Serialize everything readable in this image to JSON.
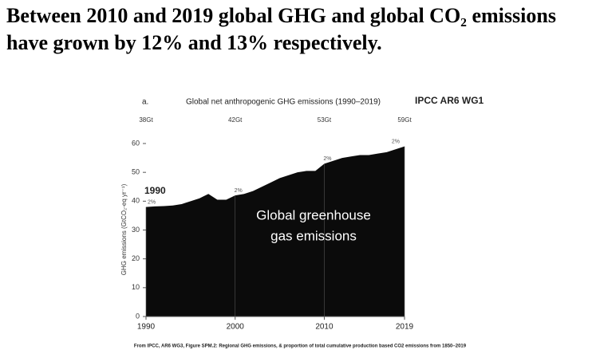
{
  "title_lines": [
    "Between 2010 and 2019 global GHG and global CO₂ emissions",
    "have grown by 12% and 13% respectively."
  ],
  "chart_data": {
    "type": "area",
    "panel": "a.",
    "title": "Global net anthropogenic GHG emissions (1990–2019)",
    "source_tag": "IPCC AR6 WG1",
    "y_label": "GHG emissions (GtCO₂-eq yr⁻¹)",
    "x": [
      1990,
      1991,
      1992,
      1993,
      1994,
      1995,
      1996,
      1997,
      1998,
      1999,
      2000,
      2001,
      2002,
      2003,
      2004,
      2005,
      2006,
      2007,
      2008,
      2009,
      2010,
      2011,
      2012,
      2013,
      2014,
      2015,
      2016,
      2017,
      2018,
      2019
    ],
    "values": [
      38,
      38.2,
      38.3,
      38.5,
      39,
      40,
      41,
      42.5,
      40.5,
      40.5,
      42,
      42.5,
      43.5,
      45,
      46.5,
      48,
      49,
      50,
      50.5,
      50.5,
      53,
      54,
      55,
      55.5,
      56,
      56,
      56.5,
      57,
      58,
      59
    ],
    "color": "#0b0b0b",
    "xlim": [
      1990,
      2019
    ],
    "xticks": [
      1990,
      2000,
      2010,
      2019
    ],
    "ylim": [
      0,
      60
    ],
    "yticks": [
      0,
      10,
      20,
      30,
      40,
      50,
      60
    ],
    "top_labels": [
      {
        "x": 1990,
        "label": "38Gt"
      },
      {
        "x": 2000,
        "label": "42Gt"
      },
      {
        "x": 2010,
        "label": "53Gt"
      },
      {
        "x": 2019,
        "label": "59Gt"
      }
    ],
    "pct_labels": [
      {
        "x": 1990,
        "label": "2%"
      },
      {
        "x": 2000,
        "label": "2%"
      },
      {
        "x": 2010,
        "label": "2%"
      },
      {
        "x": 2019,
        "label": "2%"
      }
    ],
    "start_annotation": "1990",
    "overlay_lines": [
      "Global greenhouse",
      "gas emissions"
    ]
  },
  "footer": "From IPCC, AR6 WG3, Figure SPM.2: Regional GHG emissions, & proportion of total cumulative production based CO2 emissions from 1850–2019"
}
